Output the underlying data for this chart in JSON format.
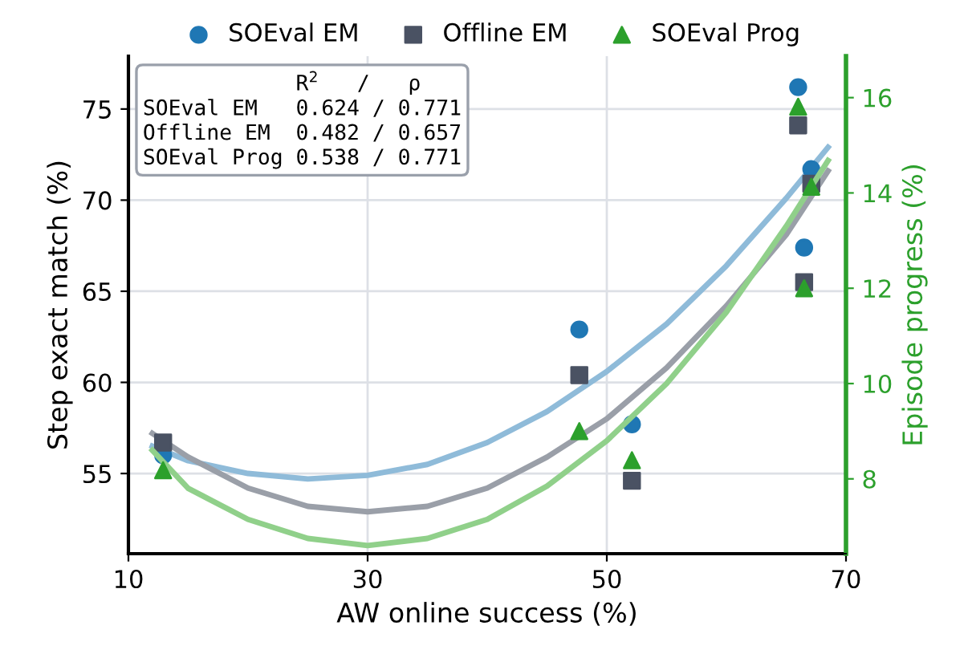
{
  "chart_data": {
    "type": "scatter",
    "xlabel": "AW online success (%)",
    "ylabel": "Step exact match (%)",
    "y2label": "Episode progress (%)",
    "xlim": [
      10,
      70
    ],
    "xticks": [
      10,
      30,
      50,
      70
    ],
    "ylim": [
      50.6,
      77.9
    ],
    "yticks": [
      55,
      60,
      65,
      70,
      75
    ],
    "y2lim": [
      6.43,
      16.87
    ],
    "y2ticks": [
      8,
      10,
      12,
      14,
      16
    ],
    "grid": true,
    "legend": "top",
    "annotations": [
      "            R$^{2}$   /   ρ",
      "SOEval EM   0.624 / 0.771",
      "Offline EM  0.482 / 0.657",
      "SOEval Prog 0.538 / 0.771"
    ],
    "series": [
      {
        "type": "line",
        "color": "#8fbbd9",
        "x": [
          12,
          15,
          20,
          25,
          30,
          35,
          40,
          45,
          50,
          55,
          60,
          65,
          68.5
        ],
        "values": [
          56.5,
          55.7,
          55.0,
          54.7,
          54.9,
          55.5,
          56.7,
          58.4,
          60.6,
          63.2,
          66.4,
          70.1,
          72.9
        ]
      },
      {
        "type": "line",
        "color": "#9a9fa8",
        "x": [
          12,
          15,
          20,
          25,
          30,
          35,
          40,
          45,
          50,
          55,
          60,
          65,
          68.5
        ],
        "values": [
          57.2,
          55.9,
          54.2,
          53.2,
          52.9,
          53.2,
          54.2,
          55.9,
          58.0,
          60.8,
          64.2,
          68.1,
          71.6
        ]
      },
      {
        "type": "line",
        "axis": "y2",
        "color": "#90d08a",
        "x": [
          12,
          15,
          20,
          25,
          30,
          35,
          40,
          45,
          50,
          55,
          60,
          65,
          68.5
        ],
        "values": [
          8.6,
          7.8,
          7.15,
          6.75,
          6.6,
          6.75,
          7.15,
          7.85,
          8.8,
          10.0,
          11.5,
          13.3,
          14.68
        ]
      },
      {
        "name": "SOEval EM",
        "marker": "circle",
        "color": "#1f77b4",
        "x": [
          12.9,
          47.7,
          52.1,
          66.0,
          66.5,
          67.1
        ],
        "values": [
          56.0,
          62.9,
          57.7,
          76.2,
          67.4,
          71.7
        ]
      },
      {
        "name": "Offline EM",
        "marker": "square",
        "color": "#4a5263",
        "x": [
          12.9,
          47.7,
          52.1,
          66.0,
          66.5,
          67.1
        ],
        "values": [
          56.7,
          60.4,
          54.6,
          74.1,
          65.5,
          70.9
        ]
      },
      {
        "name": "SOEval Prog",
        "marker": "triangle",
        "axis": "y2",
        "color": "#2ca02c",
        "x": [
          12.9,
          47.7,
          52.1,
          66.0,
          66.5,
          67.1
        ],
        "values": [
          8.18,
          9.0,
          8.39,
          15.81,
          12.0,
          14.13
        ]
      }
    ]
  }
}
